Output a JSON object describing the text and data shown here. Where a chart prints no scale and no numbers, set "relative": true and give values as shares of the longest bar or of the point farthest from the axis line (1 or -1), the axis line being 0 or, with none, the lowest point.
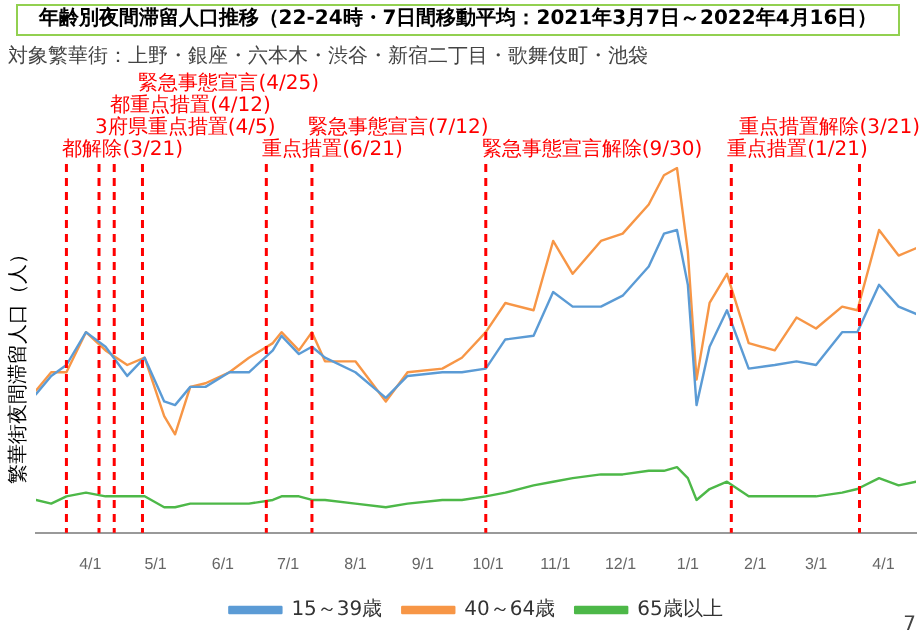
{
  "chart_data": {
    "type": "line",
    "title": "年齢別夜間滞留人口推移（22-24時・7日間移動平均：2021年3月7日～2022年4月16日）",
    "ylabel": "繁華街夜間滞留人口（人）",
    "relative": true,
    "marker": "none",
    "xticks": [
      {
        "value": "2021-04-01",
        "label": "4/1"
      },
      {
        "value": "2021-05-01",
        "label": "5/1"
      },
      {
        "value": "2021-06-01",
        "label": "6/1"
      },
      {
        "value": "2021-07-01",
        "label": "7/1"
      },
      {
        "value": "2021-08-01",
        "label": "8/1"
      },
      {
        "value": "2021-09-01",
        "label": "9/1"
      },
      {
        "value": "2021-10-01",
        "label": "10/1"
      },
      {
        "value": "2021-11-01",
        "label": "11/1"
      },
      {
        "value": "2021-12-01",
        "label": "12/1"
      },
      {
        "value": "2022-01-01",
        "label": "1/1"
      },
      {
        "value": "2022-02-01",
        "label": "2/1"
      },
      {
        "value": "2022-03-01",
        "label": "3/1"
      },
      {
        "value": "2022-04-01",
        "label": "4/1"
      }
    ],
    "legend": "bottom",
    "annotations": [
      "対象繁華街：上野・銀座・六本木・渋谷・新宿二丁目・歌舞伎町・池袋",
      "7"
    ],
    "xlim": [
      "2021-03-07",
      "2022-04-16"
    ],
    "x": [
      "2021-03-07",
      "2021-03-14",
      "2021-03-21",
      "2021-03-30",
      "2021-04-08",
      "2021-04-18",
      "2021-04-26",
      "2021-05-05",
      "2021-05-10",
      "2021-05-17",
      "2021-05-24",
      "2021-06-04",
      "2021-06-13",
      "2021-06-24",
      "2021-06-28",
      "2021-07-06",
      "2021-07-12",
      "2021-07-18",
      "2021-08-01",
      "2021-08-15",
      "2021-08-25",
      "2021-09-10",
      "2021-09-19",
      "2021-09-30",
      "2021-10-09",
      "2021-10-22",
      "2021-10-31",
      "2021-11-09",
      "2021-11-22",
      "2021-12-02",
      "2021-12-14",
      "2021-12-21",
      "2021-12-27",
      "2022-01-01",
      "2022-01-05",
      "2022-01-11",
      "2022-01-19",
      "2022-01-29",
      "2022-02-10",
      "2022-02-20",
      "2022-03-01",
      "2022-03-13",
      "2022-03-20",
      "2022-03-30",
      "2022-04-08",
      "2022-04-16"
    ],
    "series": [
      {
        "name": "15～39歳",
        "color": "#5b9bd5",
        "values": [
          0.38,
          0.43,
          0.46,
          0.55,
          0.51,
          0.43,
          0.48,
          0.36,
          0.35,
          0.4,
          0.4,
          0.44,
          0.44,
          0.5,
          0.54,
          0.49,
          0.51,
          0.48,
          0.44,
          0.37,
          0.43,
          0.44,
          0.44,
          0.45,
          0.53,
          0.54,
          0.66,
          0.62,
          0.62,
          0.65,
          0.73,
          0.82,
          0.83,
          0.68,
          0.35,
          0.51,
          0.61,
          0.45,
          0.46,
          0.47,
          0.46,
          0.55,
          0.55,
          0.68,
          0.62,
          0.6
        ]
      },
      {
        "name": "40～64歳",
        "color": "#f79646",
        "values": [
          0.39,
          0.44,
          0.44,
          0.55,
          0.5,
          0.46,
          0.48,
          0.32,
          0.27,
          0.4,
          0.41,
          0.44,
          0.48,
          0.52,
          0.55,
          0.5,
          0.55,
          0.47,
          0.47,
          0.36,
          0.44,
          0.45,
          0.48,
          0.55,
          0.63,
          0.61,
          0.8,
          0.71,
          0.8,
          0.82,
          0.9,
          0.98,
          1,
          0.77,
          0.42,
          0.63,
          0.71,
          0.52,
          0.5,
          0.59,
          0.56,
          0.62,
          0.61,
          0.83,
          0.76,
          0.78
        ]
      },
      {
        "name": "65歳以上",
        "color": "#4db848",
        "values": [
          0.09,
          0.08,
          0.1,
          0.11,
          0.1,
          0.1,
          0.1,
          0.07,
          0.07,
          0.08,
          0.08,
          0.08,
          0.08,
          0.09,
          0.1,
          0.1,
          0.09,
          0.09,
          0.08,
          0.07,
          0.08,
          0.09,
          0.09,
          0.1,
          0.11,
          0.13,
          0.14,
          0.15,
          0.16,
          0.16,
          0.17,
          0.17,
          0.18,
          0.15,
          0.09,
          0.12,
          0.14,
          0.1,
          0.1,
          0.1,
          0.1,
          0.11,
          0.12,
          0.15,
          0.13,
          0.14
        ]
      }
    ],
    "ref_lines": [
      {
        "axis": "x",
        "value": "2021-03-21",
        "label": "都解除(3/21)",
        "color": "#ff0000",
        "line_style": "dashed"
      },
      {
        "axis": "x",
        "value": "2021-04-05",
        "label": "3府県重点措置(4/5)",
        "color": "#ff0000",
        "line_style": "dashed"
      },
      {
        "axis": "x",
        "value": "2021-04-12",
        "label": "都重点措置(4/12)",
        "color": "#ff0000",
        "line_style": "dashed"
      },
      {
        "axis": "x",
        "value": "2021-04-25",
        "label": "緊急事態宣言(4/25)",
        "color": "#ff0000",
        "line_style": "dashed"
      },
      {
        "axis": "x",
        "value": "2021-06-21",
        "label": "重点措置(6/21)",
        "color": "#ff0000",
        "line_style": "dashed"
      },
      {
        "axis": "x",
        "value": "2021-07-12",
        "label": "緊急事態宣言(7/12)",
        "color": "#ff0000",
        "line_style": "dashed"
      },
      {
        "axis": "x",
        "value": "2021-09-30",
        "label": "緊急事態宣言解除(9/30)",
        "color": "#ff0000",
        "line_style": "dashed"
      },
      {
        "axis": "x",
        "value": "2022-01-21",
        "label": "重点措置(1/21)",
        "color": "#ff0000",
        "line_style": "dashed"
      },
      {
        "axis": "x",
        "value": "2022-03-21",
        "label": "重点措置解除(3/21)",
        "color": "#ff0000",
        "line_style": "dashed"
      }
    ]
  }
}
